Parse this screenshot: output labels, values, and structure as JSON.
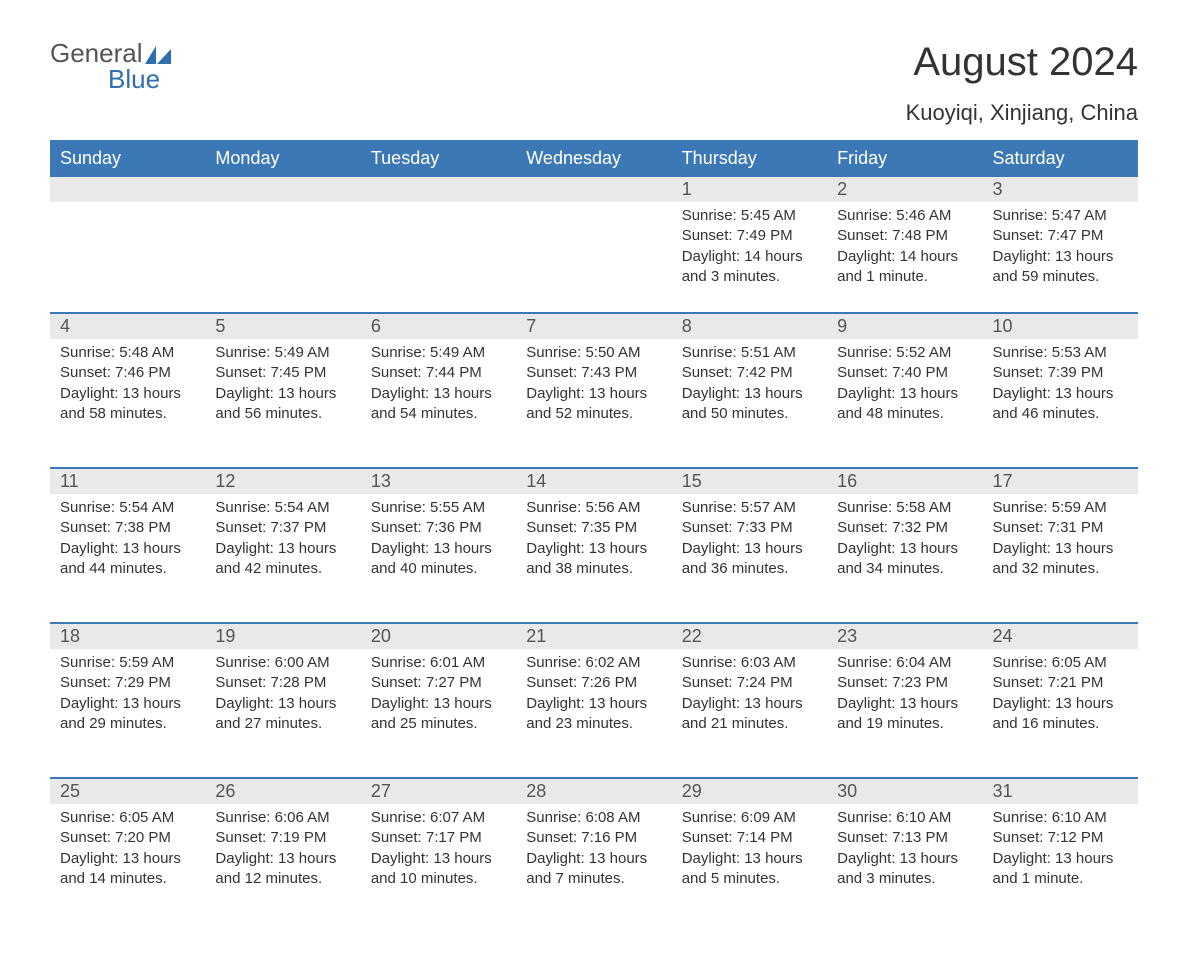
{
  "logo": {
    "word1": "General",
    "word2": "Blue",
    "color_general": "#555555",
    "color_blue": "#2f6fad",
    "flag_color": "#2f6fad"
  },
  "header": {
    "title": "August 2024",
    "location": "Kuoyiqi, Xinjiang, China"
  },
  "colors": {
    "header_bg": "#3b78b5",
    "header_text": "#ffffff",
    "daynum_bg": "#e9e9e9",
    "daynum_text": "#555555",
    "body_text": "#333333",
    "row_border": "#3b78b5",
    "page_bg": "#ffffff"
  },
  "typography": {
    "title_fontsize": 40,
    "subtitle_fontsize": 22,
    "weekday_fontsize": 18,
    "daynum_fontsize": 18,
    "content_fontsize": 15
  },
  "weekdays": [
    "Sunday",
    "Monday",
    "Tuesday",
    "Wednesday",
    "Thursday",
    "Friday",
    "Saturday"
  ],
  "weeks": [
    [
      {
        "empty": true
      },
      {
        "empty": true
      },
      {
        "empty": true
      },
      {
        "empty": true
      },
      {
        "num": "1",
        "sunrise": "Sunrise: 5:45 AM",
        "sunset": "Sunset: 7:49 PM",
        "daylight": "Daylight: 14 hours and 3 minutes."
      },
      {
        "num": "2",
        "sunrise": "Sunrise: 5:46 AM",
        "sunset": "Sunset: 7:48 PM",
        "daylight": "Daylight: 14 hours and 1 minute."
      },
      {
        "num": "3",
        "sunrise": "Sunrise: 5:47 AM",
        "sunset": "Sunset: 7:47 PM",
        "daylight": "Daylight: 13 hours and 59 minutes."
      }
    ],
    [
      {
        "num": "4",
        "sunrise": "Sunrise: 5:48 AM",
        "sunset": "Sunset: 7:46 PM",
        "daylight": "Daylight: 13 hours and 58 minutes."
      },
      {
        "num": "5",
        "sunrise": "Sunrise: 5:49 AM",
        "sunset": "Sunset: 7:45 PM",
        "daylight": "Daylight: 13 hours and 56 minutes."
      },
      {
        "num": "6",
        "sunrise": "Sunrise: 5:49 AM",
        "sunset": "Sunset: 7:44 PM",
        "daylight": "Daylight: 13 hours and 54 minutes."
      },
      {
        "num": "7",
        "sunrise": "Sunrise: 5:50 AM",
        "sunset": "Sunset: 7:43 PM",
        "daylight": "Daylight: 13 hours and 52 minutes."
      },
      {
        "num": "8",
        "sunrise": "Sunrise: 5:51 AM",
        "sunset": "Sunset: 7:42 PM",
        "daylight": "Daylight: 13 hours and 50 minutes."
      },
      {
        "num": "9",
        "sunrise": "Sunrise: 5:52 AM",
        "sunset": "Sunset: 7:40 PM",
        "daylight": "Daylight: 13 hours and 48 minutes."
      },
      {
        "num": "10",
        "sunrise": "Sunrise: 5:53 AM",
        "sunset": "Sunset: 7:39 PM",
        "daylight": "Daylight: 13 hours and 46 minutes."
      }
    ],
    [
      {
        "num": "11",
        "sunrise": "Sunrise: 5:54 AM",
        "sunset": "Sunset: 7:38 PM",
        "daylight": "Daylight: 13 hours and 44 minutes."
      },
      {
        "num": "12",
        "sunrise": "Sunrise: 5:54 AM",
        "sunset": "Sunset: 7:37 PM",
        "daylight": "Daylight: 13 hours and 42 minutes."
      },
      {
        "num": "13",
        "sunrise": "Sunrise: 5:55 AM",
        "sunset": "Sunset: 7:36 PM",
        "daylight": "Daylight: 13 hours and 40 minutes."
      },
      {
        "num": "14",
        "sunrise": "Sunrise: 5:56 AM",
        "sunset": "Sunset: 7:35 PM",
        "daylight": "Daylight: 13 hours and 38 minutes."
      },
      {
        "num": "15",
        "sunrise": "Sunrise: 5:57 AM",
        "sunset": "Sunset: 7:33 PM",
        "daylight": "Daylight: 13 hours and 36 minutes."
      },
      {
        "num": "16",
        "sunrise": "Sunrise: 5:58 AM",
        "sunset": "Sunset: 7:32 PM",
        "daylight": "Daylight: 13 hours and 34 minutes."
      },
      {
        "num": "17",
        "sunrise": "Sunrise: 5:59 AM",
        "sunset": "Sunset: 7:31 PM",
        "daylight": "Daylight: 13 hours and 32 minutes."
      }
    ],
    [
      {
        "num": "18",
        "sunrise": "Sunrise: 5:59 AM",
        "sunset": "Sunset: 7:29 PM",
        "daylight": "Daylight: 13 hours and 29 minutes."
      },
      {
        "num": "19",
        "sunrise": "Sunrise: 6:00 AM",
        "sunset": "Sunset: 7:28 PM",
        "daylight": "Daylight: 13 hours and 27 minutes."
      },
      {
        "num": "20",
        "sunrise": "Sunrise: 6:01 AM",
        "sunset": "Sunset: 7:27 PM",
        "daylight": "Daylight: 13 hours and 25 minutes."
      },
      {
        "num": "21",
        "sunrise": "Sunrise: 6:02 AM",
        "sunset": "Sunset: 7:26 PM",
        "daylight": "Daylight: 13 hours and 23 minutes."
      },
      {
        "num": "22",
        "sunrise": "Sunrise: 6:03 AM",
        "sunset": "Sunset: 7:24 PM",
        "daylight": "Daylight: 13 hours and 21 minutes."
      },
      {
        "num": "23",
        "sunrise": "Sunrise: 6:04 AM",
        "sunset": "Sunset: 7:23 PM",
        "daylight": "Daylight: 13 hours and 19 minutes."
      },
      {
        "num": "24",
        "sunrise": "Sunrise: 6:05 AM",
        "sunset": "Sunset: 7:21 PM",
        "daylight": "Daylight: 13 hours and 16 minutes."
      }
    ],
    [
      {
        "num": "25",
        "sunrise": "Sunrise: 6:05 AM",
        "sunset": "Sunset: 7:20 PM",
        "daylight": "Daylight: 13 hours and 14 minutes."
      },
      {
        "num": "26",
        "sunrise": "Sunrise: 6:06 AM",
        "sunset": "Sunset: 7:19 PM",
        "daylight": "Daylight: 13 hours and 12 minutes."
      },
      {
        "num": "27",
        "sunrise": "Sunrise: 6:07 AM",
        "sunset": "Sunset: 7:17 PM",
        "daylight": "Daylight: 13 hours and 10 minutes."
      },
      {
        "num": "28",
        "sunrise": "Sunrise: 6:08 AM",
        "sunset": "Sunset: 7:16 PM",
        "daylight": "Daylight: 13 hours and 7 minutes."
      },
      {
        "num": "29",
        "sunrise": "Sunrise: 6:09 AM",
        "sunset": "Sunset: 7:14 PM",
        "daylight": "Daylight: 13 hours and 5 minutes."
      },
      {
        "num": "30",
        "sunrise": "Sunrise: 6:10 AM",
        "sunset": "Sunset: 7:13 PM",
        "daylight": "Daylight: 13 hours and 3 minutes."
      },
      {
        "num": "31",
        "sunrise": "Sunrise: 6:10 AM",
        "sunset": "Sunset: 7:12 PM",
        "daylight": "Daylight: 13 hours and 1 minute."
      }
    ]
  ]
}
